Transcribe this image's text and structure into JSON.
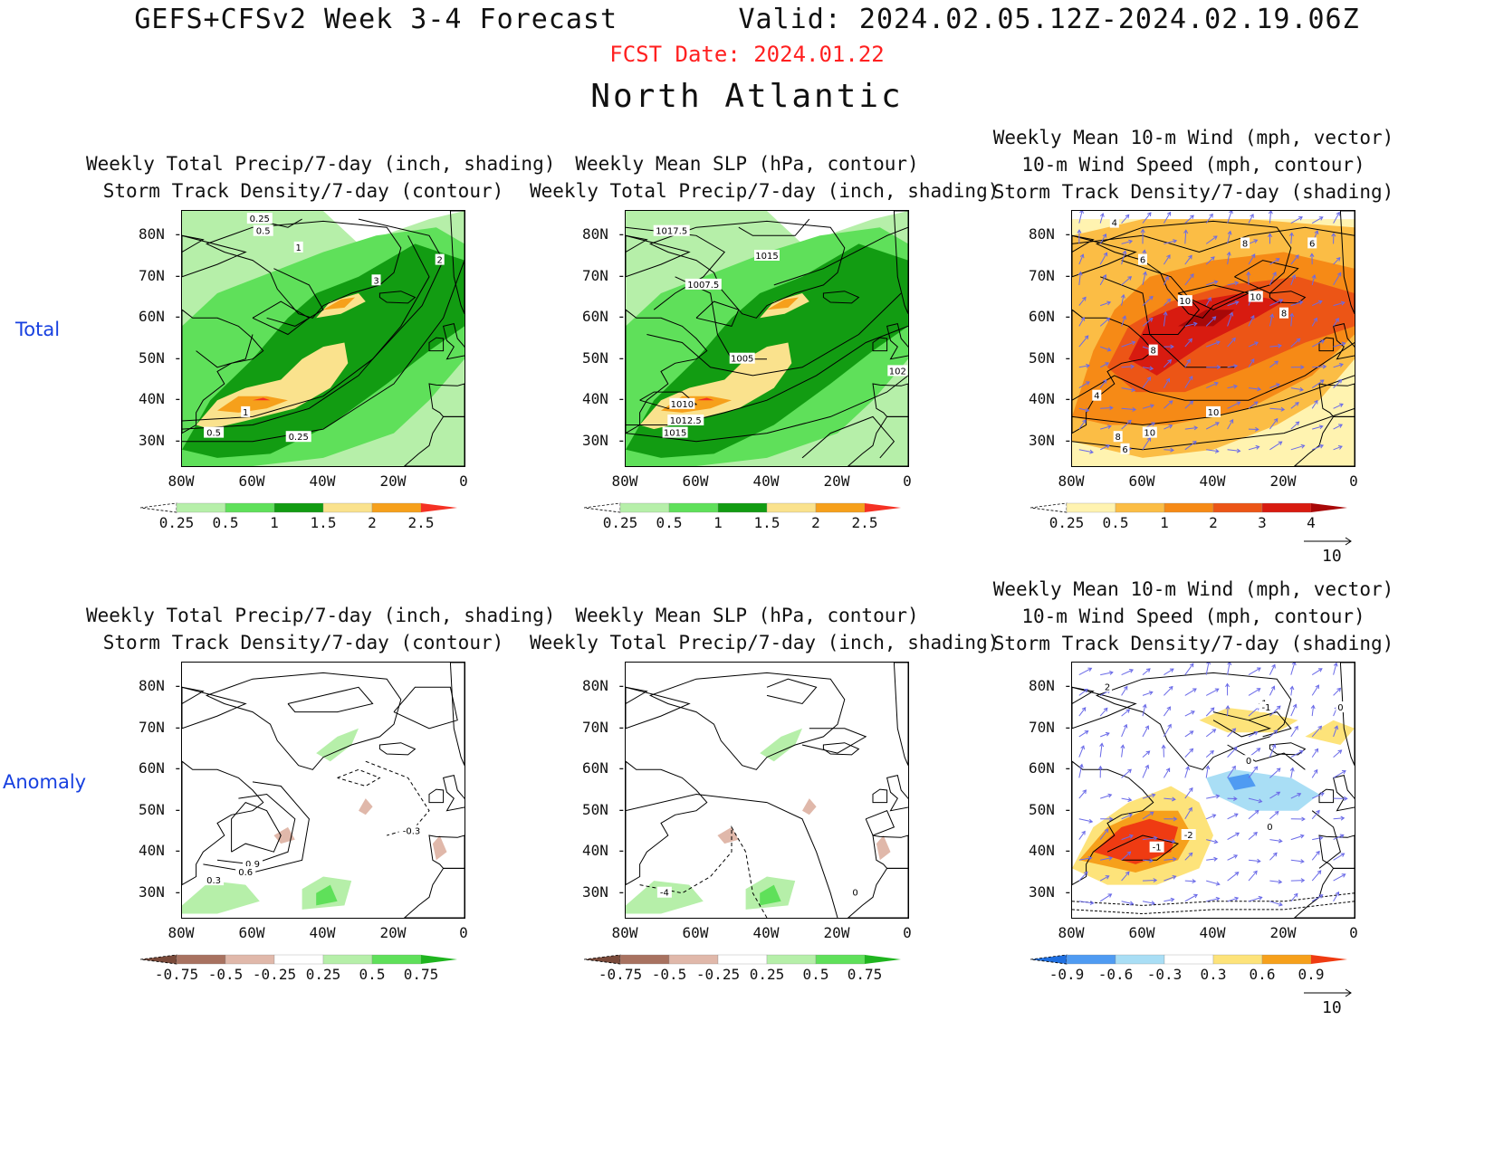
{
  "header": {
    "title": "GEFS+CFSv2 Week 3-4 Forecast       Valid: 2024.02.05.12Z-2024.02.19.06Z",
    "fcst_date": "FCST Date: 2024.01.22",
    "region": "North Atlantic"
  },
  "row_labels": {
    "total": "Total",
    "anomaly": "Anomaly"
  },
  "axes": {
    "lat_labels": [
      "80N",
      "70N",
      "60N",
      "50N",
      "40N",
      "30N"
    ],
    "lon_labels": [
      "80W",
      "60W",
      "40W",
      "20W",
      "0"
    ]
  },
  "panels": [
    {
      "id": "total-precip-storm",
      "title_lines": [
        "Weekly Total Precip/7-day (inch, shading)",
        "Storm Track Density/7-day (contour)"
      ],
      "colorbar": {
        "labels": [
          "0.25",
          "0.5",
          "1",
          "1.5",
          "2",
          "2.5"
        ],
        "colors": [
          "#ffffff",
          "#b6efa9",
          "#5fe05a",
          "#129c12",
          "#fae28d",
          "#f6a01b",
          "#f53124"
        ]
      },
      "contour_labels": [
        "0.25",
        "0.5",
        "1",
        "2",
        "3",
        "1",
        "0.5",
        "0.25"
      ]
    },
    {
      "id": "total-slp-precip",
      "title_lines": [
        "Weekly Mean SLP (hPa, contour)",
        "Weekly Total Precip/7-day (inch, shading)"
      ],
      "colorbar": {
        "labels": [
          "0.25",
          "0.5",
          "1",
          "1.5",
          "2",
          "2.5"
        ],
        "colors": [
          "#ffffff",
          "#b6efa9",
          "#5fe05a",
          "#129c12",
          "#fae28d",
          "#f6a01b",
          "#f53124"
        ]
      },
      "contour_labels": [
        "1017.5",
        "1015",
        "1007.5",
        "1005",
        "1010",
        "1012.5",
        "1015",
        "102"
      ]
    },
    {
      "id": "total-wind-storm",
      "title_lines": [
        "Weekly Mean 10-m Wind (mph, vector)",
        "10-m Wind Speed (mph, contour)",
        "Storm Track Density/7-day (shading)"
      ],
      "colorbar": {
        "labels": [
          "0.25",
          "0.5",
          "1",
          "2",
          "3",
          "4"
        ],
        "colors": [
          "#ffffff",
          "#fff3b0",
          "#fbbd45",
          "#f68a16",
          "#ec5516",
          "#d81b10",
          "#a80808"
        ]
      },
      "contour_labels": [
        "4",
        "8",
        "6",
        "6",
        "10",
        "10",
        "8",
        "8",
        "4",
        "10",
        "10",
        "8",
        "6"
      ],
      "ref_vector": "10"
    },
    {
      "id": "anom-precip-storm",
      "title_lines": [
        "Weekly Total Precip/7-day (inch, shading)",
        "Storm Track Density/7-day (contour)"
      ],
      "colorbar": {
        "labels": [
          "-0.75",
          "-0.5",
          "-0.25",
          "0.25",
          "0.5",
          "0.75"
        ],
        "colors": [
          "#7a4a3a",
          "#a87260",
          "#e0b8aa",
          "#ffffff",
          "#b6efa9",
          "#5fe05a",
          "#1fb51f"
        ]
      },
      "contour_labels": [
        "-0.3",
        "0.9",
        "0.6",
        "0.3"
      ]
    },
    {
      "id": "anom-slp-precip",
      "title_lines": [
        "Weekly Mean SLP (hPa, contour)",
        "Weekly Total Precip/7-day (inch, shading)"
      ],
      "colorbar": {
        "labels": [
          "-0.75",
          "-0.5",
          "-0.25",
          "0.25",
          "0.5",
          "0.75"
        ],
        "colors": [
          "#7a4a3a",
          "#a87260",
          "#e0b8aa",
          "#ffffff",
          "#b6efa9",
          "#5fe05a",
          "#1fb51f"
        ]
      },
      "contour_labels": [
        "-4",
        "0"
      ]
    },
    {
      "id": "anom-wind-storm",
      "title_lines": [
        "Weekly Mean 10-m Wind (mph, vector)",
        "10-m Wind Speed (mph, contour)",
        "Storm Track Density/7-day (shading)"
      ],
      "colorbar": {
        "labels": [
          "-0.9",
          "-0.6",
          "-0.3",
          "0.3",
          "0.6",
          "0.9"
        ],
        "colors": [
          "#1f6fe0",
          "#4f9bf2",
          "#a9def5",
          "#ffffff",
          "#fde37a",
          "#f6a01b",
          "#ef3b12"
        ]
      },
      "contour_labels": [
        "2",
        "-1",
        "0",
        "-1",
        "0",
        "-2",
        "-1",
        "0"
      ],
      "ref_vector": "10"
    }
  ]
}
